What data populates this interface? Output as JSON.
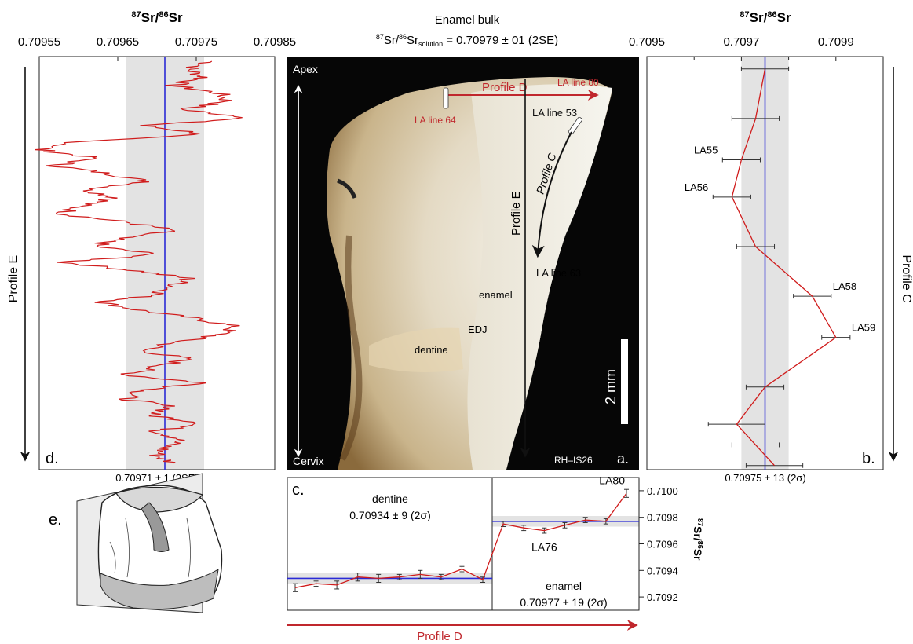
{
  "colors": {
    "series": "#d01c1c",
    "mean": "#2a2ad6",
    "band": "#e3e3e3",
    "profile_d": "#c0272d"
  },
  "photo": {
    "header_line1": "Enamel bulk",
    "header_line2_a": "87",
    "header_line2_b": "Sr/",
    "header_line2_c": "86",
    "header_line2_d": "Sr",
    "header_line2_e": "solution",
    "header_line2_f": " = 0.70979 ± 01 (2SE)",
    "apex": "Apex",
    "cervix": "Cervix",
    "profile_d": "Profile D",
    "la_line_80": "LA line 80",
    "la_line_64": "LA line 64",
    "la_line_53": "LA line 53",
    "profile_c": "Profile C",
    "profile_e": "Profile E",
    "la_line_63": "LA line 63",
    "enamel": "enamel",
    "edj": "EDJ",
    "dentine": "dentine",
    "scale": "2 mm",
    "specimen": "RH–IS26",
    "panel": "a."
  },
  "panel_e": {
    "label": "e."
  },
  "profile_d_arrow": "Profile D",
  "chart_data": [
    {
      "id": "d",
      "type": "line",
      "panel": "d.",
      "axis_title_pre": "87",
      "axis_title_mid": "Sr/",
      "axis_title_sup2": "86",
      "axis_title_post": "Sr",
      "xlim": [
        0.70955,
        0.70985
      ],
      "xticks": [
        "0.70955",
        "0.70965",
        "0.70975",
        "0.70985"
      ],
      "mean": 0.70971,
      "band": [
        0.70966,
        0.70976
      ],
      "profile_label": "Profile E",
      "summary": "0.70971 ± 1 (2SE)",
      "y": [
        0,
        0.02,
        0.04,
        0.06,
        0.08,
        0.1,
        0.12,
        0.14,
        0.16,
        0.18,
        0.2,
        0.22,
        0.24,
        0.26,
        0.28,
        0.3,
        0.32,
        0.34,
        0.36,
        0.38,
        0.4,
        0.42,
        0.44,
        0.46,
        0.48,
        0.5,
        0.52,
        0.54,
        0.56,
        0.58,
        0.6,
        0.62,
        0.64,
        0.66,
        0.68,
        0.7,
        0.72,
        0.74,
        0.76,
        0.78,
        0.8,
        0.82,
        0.84,
        0.86,
        0.88,
        0.9,
        0.92,
        0.94,
        0.96,
        0.98,
        1.0
      ],
      "x": [
        0.70977,
        0.70974,
        0.70976,
        0.70972,
        0.70978,
        0.70979,
        0.70973,
        0.70982,
        0.70968,
        0.70976,
        0.7096,
        0.70955,
        0.70962,
        0.70957,
        0.70964,
        0.70969,
        0.70961,
        0.70965,
        0.7096,
        0.70958,
        0.70966,
        0.70972,
        0.70965,
        0.70962,
        0.7097,
        0.70958,
        0.70967,
        0.70974,
        0.70972,
        0.7097,
        0.70963,
        0.70968,
        0.70975,
        0.7098,
        0.70978,
        0.70972,
        0.70968,
        0.70974,
        0.7097,
        0.70966,
        0.70976,
        0.70968,
        0.70966,
        0.70972,
        0.70969,
        0.70976,
        0.7097,
        0.70973,
        0.70971,
        0.7097,
        0.70972
      ]
    },
    {
      "id": "b",
      "type": "line",
      "panel": "b.",
      "axis_title_pre": "87",
      "axis_title_mid": "Sr/",
      "axis_title_sup2": "86",
      "axis_title_post": "Sr",
      "xlim": [
        0.7095,
        0.71
      ],
      "xticks": [
        "0.7095",
        "0.7097",
        "0.7099"
      ],
      "mean": 0.70975,
      "band": [
        0.7097,
        0.7098
      ],
      "profile_label": "Profile C",
      "summary": "0.70975 ± 13 (2σ)",
      "points": [
        {
          "x": 0.70975,
          "err": 5e-05,
          "y": 0.03,
          "label": ""
        },
        {
          "x": 0.70973,
          "err": 5e-05,
          "y": 0.15,
          "label": ""
        },
        {
          "x": 0.7097,
          "err": 4e-05,
          "y": 0.25,
          "label": "LA55"
        },
        {
          "x": 0.70968,
          "err": 4e-05,
          "y": 0.34,
          "label": "LA56"
        },
        {
          "x": 0.70973,
          "err": 4e-05,
          "y": 0.46,
          "label": ""
        },
        {
          "x": 0.70985,
          "err": 4e-05,
          "y": 0.58,
          "label": "LA58"
        },
        {
          "x": 0.7099,
          "err": 3e-05,
          "y": 0.68,
          "label": "LA59"
        },
        {
          "x": 0.70975,
          "err": 4e-05,
          "y": 0.8,
          "label": ""
        },
        {
          "x": 0.70969,
          "err": 6e-05,
          "y": 0.89,
          "label": ""
        },
        {
          "x": 0.70973,
          "err": 5e-05,
          "y": 0.94,
          "label": ""
        },
        {
          "x": 0.70977,
          "err": 6e-05,
          "y": 0.99,
          "label": ""
        }
      ]
    },
    {
      "id": "c",
      "type": "line",
      "panel": "c.",
      "axis_title_pre": "87",
      "axis_title_mid": "Sr/",
      "axis_title_sup2": "86",
      "axis_title_post": "Sr",
      "ylim": [
        0.7091,
        0.7101
      ],
      "yticks": [
        "0.7100",
        "0.7098",
        "0.7096",
        "0.7094",
        "0.7092"
      ],
      "dentine_label": "dentine",
      "dentine_value": "0.70934 ± 9 (2σ)",
      "enamel_label": "enamel",
      "enamel_value": "0.70977 ± 19 (2σ)",
      "dentine": {
        "mean": 0.70934,
        "band": [
          0.7093,
          0.70938
        ],
        "values": [
          0.70927,
          0.7093,
          0.70929,
          0.70935,
          0.70934,
          0.70935,
          0.70937,
          0.70935,
          0.70941,
          0.70933
        ],
        "err": [
          3e-05,
          2e-05,
          3e-05,
          3e-05,
          3e-05,
          2e-05,
          3e-05,
          2e-05,
          2e-05,
          2e-05
        ]
      },
      "enamel": {
        "mean": 0.70977,
        "band": [
          0.70973,
          0.70981
        ],
        "values": [
          0.70975,
          0.70972,
          0.7097,
          0.70974,
          0.70978,
          0.70977,
          0.70998
        ],
        "err": [
          2e-05,
          2e-05,
          2e-05,
          2e-05,
          2e-05,
          2e-05,
          3e-05
        ],
        "labels": [
          "",
          "",
          "LA76",
          "",
          "",
          "",
          "LA80"
        ]
      }
    }
  ]
}
